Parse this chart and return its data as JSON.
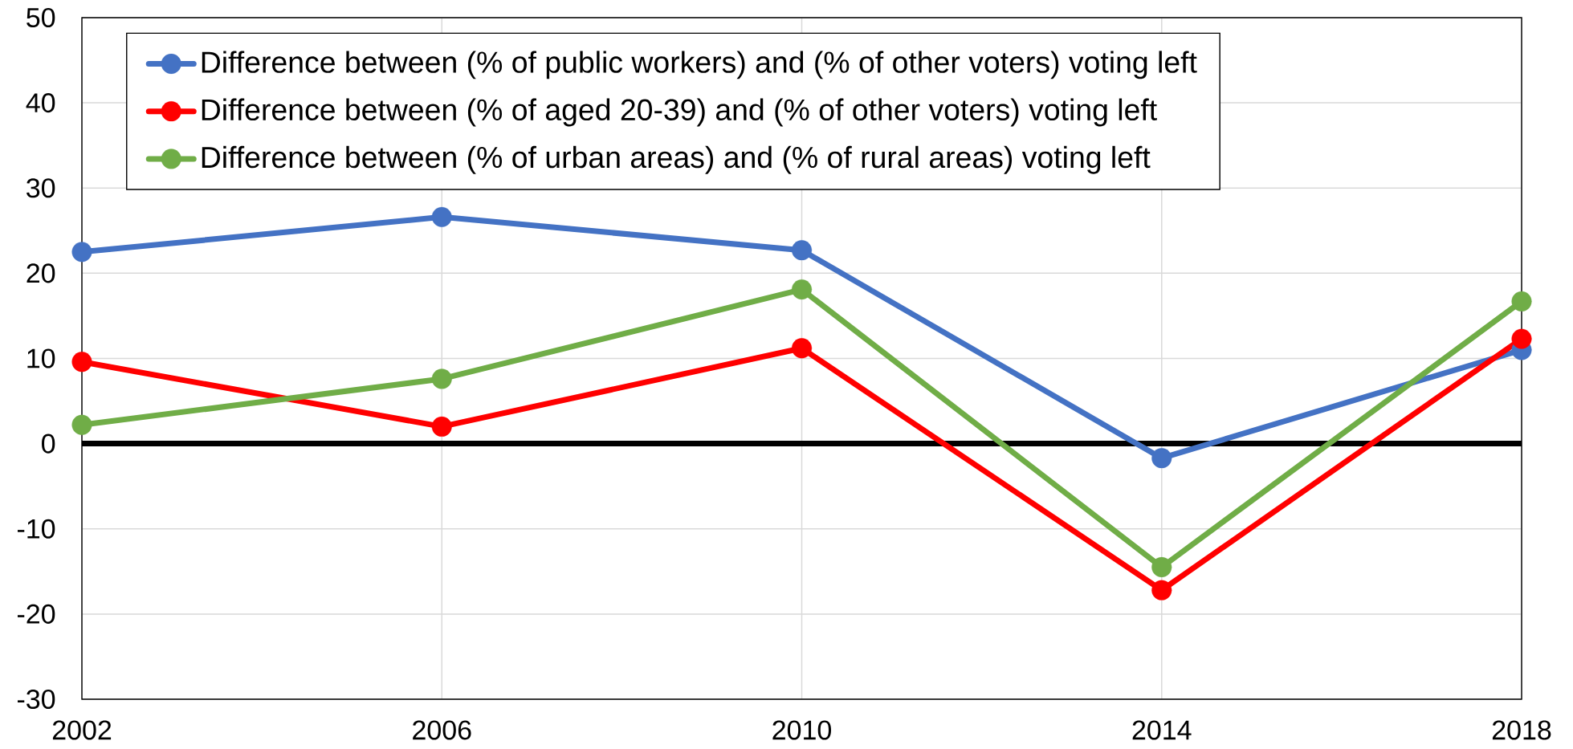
{
  "chart_data": {
    "type": "line",
    "x": [
      2002,
      2006,
      2010,
      2014,
      2018
    ],
    "xlim": [
      2002,
      2018
    ],
    "xticks": [
      2002,
      2006,
      2010,
      2014,
      2018
    ],
    "ylim": [
      -30,
      50
    ],
    "yticks": [
      -30,
      -20,
      -10,
      0,
      10,
      20,
      30,
      40,
      50
    ],
    "series": [
      {
        "name": "Difference between (% of public workers) and (% of other voters) voting left",
        "color": "#4472c4",
        "values": [
          22.5,
          26.6,
          22.7,
          -1.7,
          11.0
        ]
      },
      {
        "name": "Difference between (% of aged 20-39) and (% of other voters) voting left",
        "color": "#ff0000",
        "values": [
          9.6,
          2.0,
          11.2,
          -17.2,
          12.3
        ]
      },
      {
        "name": "Difference between (% of urban areas) and (% of rural areas) voting left",
        "color": "#70ad47",
        "values": [
          2.2,
          7.6,
          18.1,
          -14.5,
          16.7
        ]
      }
    ],
    "ref_lines": [
      {
        "axis": "y",
        "value": 0,
        "color": "#000000"
      }
    ],
    "grid": true,
    "legend": "top left",
    "marker": "circle",
    "line_style": "solid"
  }
}
